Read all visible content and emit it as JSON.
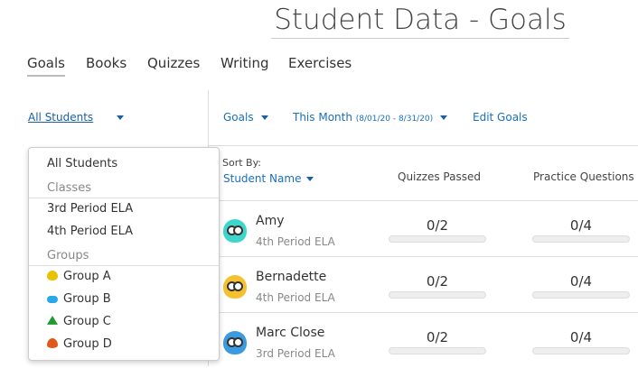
{
  "header": {
    "title": "Student Data - Goals"
  },
  "tabs": [
    {
      "label": "Goals",
      "active": true
    },
    {
      "label": "Books"
    },
    {
      "label": "Quizzes"
    },
    {
      "label": "Writing"
    },
    {
      "label": "Exercises"
    }
  ],
  "filters": {
    "student_filter": "All Students",
    "goals": "Goals",
    "period": "This Month",
    "period_range": "(8/01/20 - 8/31/20)",
    "edit_goals": "Edit Goals"
  },
  "dropdown": {
    "all": "All Students",
    "classes_header": "Classes",
    "classes": [
      "3rd Period ELA",
      "4th Period ELA"
    ],
    "groups_header": "Groups",
    "groups": [
      {
        "label": "Group A",
        "icon": "tree-icon",
        "color": "#e6c200"
      },
      {
        "label": "Group B",
        "icon": "cloud-icon",
        "color": "#29a8e8"
      },
      {
        "label": "Group C",
        "icon": "pine-tree-icon",
        "color": "#1e9a2e"
      },
      {
        "label": "Group D",
        "icon": "flame-icon",
        "color": "#e0581e"
      }
    ]
  },
  "table": {
    "sort_by": "Sort By:",
    "sort_field": "Student Name",
    "columns": [
      "Quizzes Passed",
      "Practice Questions"
    ],
    "rows": [
      {
        "name": "Amy",
        "class": "4th Period ELA",
        "quizzes": "0/2",
        "practice": "0/4",
        "quizzes_progress": 0,
        "practice_progress": 0,
        "avatar_color": "#3dd6c8"
      },
      {
        "name": "Bernadette",
        "class": "4th Period ELA",
        "quizzes": "0/2",
        "practice": "0/4",
        "quizzes_progress": 0,
        "practice_progress": 0,
        "avatar_color": "#f5c12e"
      },
      {
        "name": "Marc Close",
        "class": "3rd Period ELA",
        "quizzes": "0/2",
        "practice": "0/4",
        "quizzes_progress": 0,
        "practice_progress": 0,
        "avatar_color": "#3a9be0"
      }
    ]
  }
}
